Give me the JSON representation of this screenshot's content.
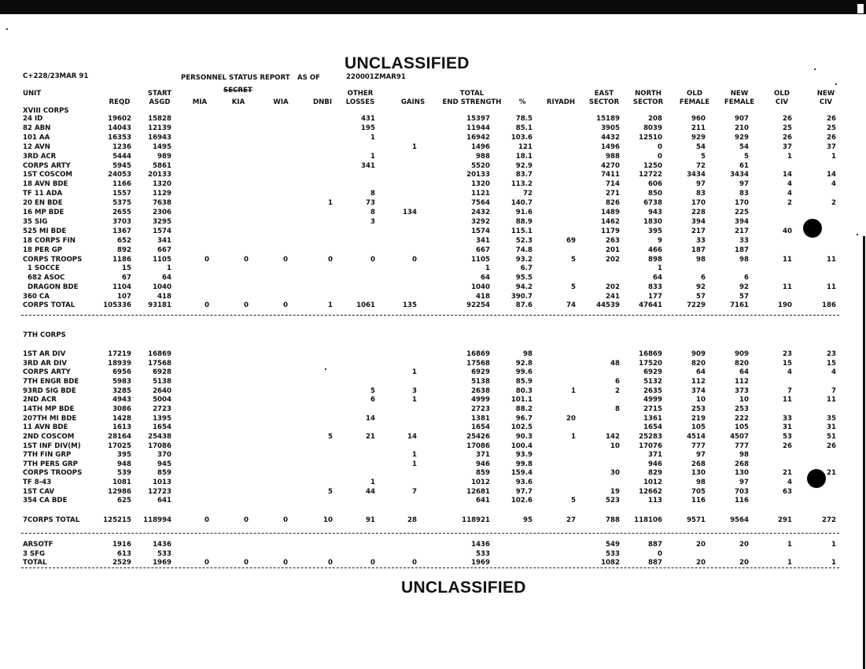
{
  "classification_top": "UNCLASSIFIED",
  "classification_bottom": "UNCLASSIFIED",
  "doc_id": "C+228/23MAR 91",
  "report_title": "PERSONNEL STATUS REPORT",
  "as_of_label": "AS OF",
  "as_of_value": "220001ZMAR91",
  "struck_marking": "SECRET",
  "columns": [
    {
      "key": "unit",
      "l1": "UNIT",
      "l2": ""
    },
    {
      "key": "reqd",
      "l1": "",
      "l2": "REQD"
    },
    {
      "key": "asgd",
      "l1": "START",
      "l2": "ASGD"
    },
    {
      "key": "mia",
      "l1": "",
      "l2": "MIA"
    },
    {
      "key": "kia",
      "l1": "",
      "l2": "KIA"
    },
    {
      "key": "wia",
      "l1": "",
      "l2": "WIA"
    },
    {
      "key": "dnbi",
      "l1": "",
      "l2": "DNBI"
    },
    {
      "key": "other",
      "l1": "OTHER",
      "l2": "LOSSES"
    },
    {
      "key": "gains",
      "l1": "",
      "l2": "GAINS"
    },
    {
      "key": "total",
      "l1": "TOTAL",
      "l2": "END STRENGTH"
    },
    {
      "key": "pct",
      "l1": "",
      "l2": "%"
    },
    {
      "key": "riyadh",
      "l1": "",
      "l2": "RIYADH"
    },
    {
      "key": "east",
      "l1": "EAST",
      "l2": "SECTOR"
    },
    {
      "key": "north",
      "l1": "NORTH",
      "l2": "SECTOR"
    },
    {
      "key": "oldf",
      "l1": "OLD",
      "l2": "FEMALE"
    },
    {
      "key": "newf",
      "l1": "NEW",
      "l2": "FEMALE"
    },
    {
      "key": "oldciv",
      "l1": "OLD",
      "l2": "CIV"
    },
    {
      "key": "newciv",
      "l1": "NEW",
      "l2": "CIV"
    }
  ],
  "sections": [
    {
      "title": "XVIII CORPS",
      "rows": [
        [
          "24 ID",
          "19602",
          "15828",
          "",
          "",
          "",
          "",
          "431",
          "",
          "15397",
          "78.5",
          "",
          "15189",
          "208",
          "960",
          "907",
          "26",
          "26"
        ],
        [
          "82 ABN",
          "14043",
          "12139",
          "",
          "",
          "",
          "",
          "195",
          "",
          "11944",
          "85.1",
          "",
          "3905",
          "8039",
          "211",
          "210",
          "25",
          "25"
        ],
        [
          "101 AA",
          "16353",
          "16943",
          "",
          "",
          "",
          "",
          "1",
          "",
          "16942",
          "103.6",
          "",
          "4432",
          "12510",
          "929",
          "929",
          "26",
          "26"
        ],
        [
          "12 AVN",
          "1236",
          "1495",
          "",
          "",
          "",
          "",
          "",
          "1",
          "1496",
          "121",
          "",
          "1496",
          "0",
          "54",
          "54",
          "37",
          "37"
        ],
        [
          "3RD ACR",
          "5444",
          "989",
          "",
          "",
          "",
          "",
          "1",
          "",
          "988",
          "18.1",
          "",
          "988",
          "0",
          "5",
          "5",
          "1",
          "1"
        ],
        [
          "CORPS ARTY",
          "5945",
          "5861",
          "",
          "",
          "",
          "",
          "341",
          "",
          "5520",
          "92.9",
          "",
          "4270",
          "1250",
          "72",
          "61",
          "",
          ""
        ],
        [
          "1ST COSCOM",
          "24053",
          "20133",
          "",
          "",
          "",
          "",
          "",
          "",
          "20133",
          "83.7",
          "",
          "7411",
          "12722",
          "3434",
          "3434",
          "14",
          "14"
        ],
        [
          "18 AVN BDE",
          "1166",
          "1320",
          "",
          "",
          "",
          "",
          "",
          "",
          "1320",
          "113.2",
          "",
          "714",
          "606",
          "97",
          "97",
          "4",
          "4"
        ],
        [
          "TF 11 ADA",
          "1557",
          "1129",
          "",
          "",
          "",
          "",
          "8",
          "",
          "1121",
          "72",
          "",
          "271",
          "850",
          "83",
          "83",
          "4",
          ""
        ],
        [
          "20 EN BDE",
          "5375",
          "7638",
          "",
          "",
          "",
          "1",
          "73",
          "",
          "7564",
          "140.7",
          "",
          "826",
          "6738",
          "170",
          "170",
          "2",
          "2"
        ],
        [
          "16 MP BDE",
          "2655",
          "2306",
          "",
          "",
          "",
          "",
          "8",
          "134",
          "2432",
          "91.6",
          "",
          "1489",
          "943",
          "228",
          "225",
          "",
          ""
        ],
        [
          "35 SIG",
          "3703",
          "3295",
          "",
          "",
          "",
          "",
          "3",
          "",
          "3292",
          "88.9",
          "",
          "1462",
          "1830",
          "394",
          "394",
          "",
          ""
        ],
        [
          "525 MI BDE",
          "1367",
          "1574",
          "",
          "",
          "",
          "",
          "",
          "",
          "1574",
          "115.1",
          "",
          "1179",
          "395",
          "217",
          "217",
          "40",
          ""
        ],
        [
          "18 CORPS FIN",
          "652",
          "341",
          "",
          "",
          "",
          "",
          "",
          "",
          "341",
          "52.3",
          "69",
          "263",
          "9",
          "33",
          "33",
          "",
          ""
        ],
        [
          "18 PER GP",
          "892",
          "667",
          "",
          "",
          "",
          "",
          "",
          "",
          "667",
          "74.8",
          "",
          "201",
          "466",
          "187",
          "187",
          "",
          ""
        ],
        [
          "CORPS TROOPS",
          "1186",
          "1105",
          "0",
          "0",
          "0",
          "0",
          "0",
          "0",
          "1105",
          "93.2",
          "5",
          "202",
          "898",
          "98",
          "98",
          "11",
          "11"
        ],
        [
          "  1 SOCCE",
          "15",
          "1",
          "",
          "",
          "",
          "",
          "",
          "",
          "1",
          "6.7",
          "",
          "",
          "1",
          "",
          "",
          "",
          ""
        ],
        [
          "  682 ASOC",
          "67",
          "64",
          "",
          "",
          "",
          "",
          "",
          "",
          "64",
          "95.5",
          "",
          "",
          "64",
          "6",
          "6",
          "",
          ""
        ],
        [
          "  DRAGON BDE",
          "1104",
          "1040",
          "",
          "",
          "",
          "",
          "",
          "",
          "1040",
          "94.2",
          "5",
          "202",
          "833",
          "92",
          "92",
          "11",
          "11"
        ],
        [
          "360 CA",
          "107",
          "418",
          "",
          "",
          "",
          "",
          "",
          "",
          "418",
          "390.7",
          "",
          "241",
          "177",
          "57",
          "57",
          "",
          ""
        ]
      ],
      "total": [
        "CORPS TOTAL",
        "105336",
        "93181",
        "0",
        "0",
        "0",
        "1",
        "1061",
        "135",
        "92254",
        "87.6",
        "74",
        "44539",
        "47641",
        "7229",
        "7161",
        "190",
        "186"
      ]
    },
    {
      "title": "7TH CORPS",
      "rows": [
        [
          "1ST AR DIV",
          "17219",
          "16869",
          "",
          "",
          "",
          "",
          "",
          "",
          "16869",
          "98",
          "",
          "",
          "16869",
          "909",
          "909",
          "23",
          "23"
        ],
        [
          "3RD AR DIV",
          "18939",
          "17568",
          "",
          "",
          "",
          "",
          "",
          "",
          "17568",
          "92.8",
          "",
          "48",
          "17520",
          "820",
          "820",
          "15",
          "15"
        ],
        [
          "CORPS ARTY",
          "6956",
          "6928",
          "",
          "",
          "",
          "",
          "",
          "1",
          "6929",
          "99.6",
          "",
          "",
          "6929",
          "64",
          "64",
          "4",
          "4"
        ],
        [
          "7TH ENGR BDE",
          "5983",
          "5138",
          "",
          "",
          "",
          "",
          "",
          "",
          "5138",
          "85.9",
          "",
          "6",
          "5132",
          "112",
          "112",
          "",
          ""
        ],
        [
          "93RD SIG BDE",
          "3285",
          "2640",
          "",
          "",
          "",
          "",
          "5",
          "3",
          "2638",
          "80.3",
          "1",
          "2",
          "2635",
          "374",
          "373",
          "7",
          "7"
        ],
        [
          "2ND ACR",
          "4943",
          "5004",
          "",
          "",
          "",
          "",
          "6",
          "1",
          "4999",
          "101.1",
          "",
          "",
          "4999",
          "10",
          "10",
          "11",
          "11"
        ],
        [
          "14TH MP BDE",
          "3086",
          "2723",
          "",
          "",
          "",
          "",
          "",
          "",
          "2723",
          "88.2",
          "",
          "8",
          "2715",
          "253",
          "253",
          "",
          ""
        ],
        [
          "207TH MI BDE",
          "1428",
          "1395",
          "",
          "",
          "",
          "",
          "14",
          "",
          "1381",
          "96.7",
          "20",
          "",
          "1361",
          "219",
          "222",
          "33",
          "35"
        ],
        [
          "11 AVN BDE",
          "1613",
          "1654",
          "",
          "",
          "",
          "",
          "",
          "",
          "1654",
          "102.5",
          "",
          "",
          "1654",
          "105",
          "105",
          "31",
          "31"
        ],
        [
          "2ND COSCOM",
          "28164",
          "25438",
          "",
          "",
          "",
          "5",
          "21",
          "14",
          "25426",
          "90.3",
          "1",
          "142",
          "25283",
          "4514",
          "4507",
          "53",
          "51"
        ],
        [
          "1ST INF DIV(M)",
          "17025",
          "17086",
          "",
          "",
          "",
          "",
          "",
          "",
          "17086",
          "100.4",
          "",
          "10",
          "17076",
          "777",
          "777",
          "26",
          "26"
        ],
        [
          "7TH FIN GRP",
          "395",
          "370",
          "",
          "",
          "",
          "",
          "",
          "1",
          "371",
          "93.9",
          "",
          "",
          "371",
          "97",
          "98",
          "",
          ""
        ],
        [
          "7TH PERS GRP",
          "948",
          "945",
          "",
          "",
          "",
          "",
          "",
          "1",
          "946",
          "99.8",
          "",
          "",
          "946",
          "268",
          "268",
          "",
          ""
        ],
        [
          "CORPS TROOPS",
          "539",
          "859",
          "",
          "",
          "",
          "",
          "",
          "",
          "859",
          "159.4",
          "",
          "30",
          "829",
          "130",
          "130",
          "21",
          "21"
        ],
        [
          "TF 8-43",
          "1081",
          "1013",
          "",
          "",
          "",
          "",
          "1",
          "",
          "1012",
          "93.6",
          "",
          "",
          "1012",
          "98",
          "97",
          "4",
          ""
        ],
        [
          "1ST CAV",
          "12986",
          "12723",
          "",
          "",
          "",
          "5",
          "44",
          "7",
          "12681",
          "97.7",
          "",
          "19",
          "12662",
          "705",
          "703",
          "63",
          ""
        ],
        [
          "354 CA BDE",
          "625",
          "641",
          "",
          "",
          "",
          "",
          "",
          "",
          "641",
          "102.6",
          "5",
          "523",
          "113",
          "116",
          "116",
          "",
          ""
        ]
      ],
      "total": [
        "7CORPS TOTAL",
        "125215",
        "118994",
        "0",
        "0",
        "0",
        "10",
        "91",
        "28",
        "118921",
        "95",
        "27",
        "788",
        "118106",
        "9571",
        "9564",
        "291",
        "272"
      ]
    },
    {
      "title": "",
      "rows": [
        [
          "ARSOTF",
          "1916",
          "1436",
          "",
          "",
          "",
          "",
          "",
          "",
          "1436",
          "",
          "",
          "549",
          "887",
          "20",
          "20",
          "1",
          "1"
        ],
        [
          "3 SFG",
          "613",
          "533",
          "",
          "",
          "",
          "",
          "",
          "",
          "533",
          "",
          "",
          "533",
          "0",
          "",
          "",
          "",
          ""
        ]
      ],
      "total": [
        "TOTAL",
        "2529",
        "1969",
        "0",
        "0",
        "0",
        "0",
        "0",
        "0",
        "1969",
        "",
        "",
        "1082",
        "887",
        "20",
        "20",
        "1",
        "1"
      ]
    }
  ]
}
